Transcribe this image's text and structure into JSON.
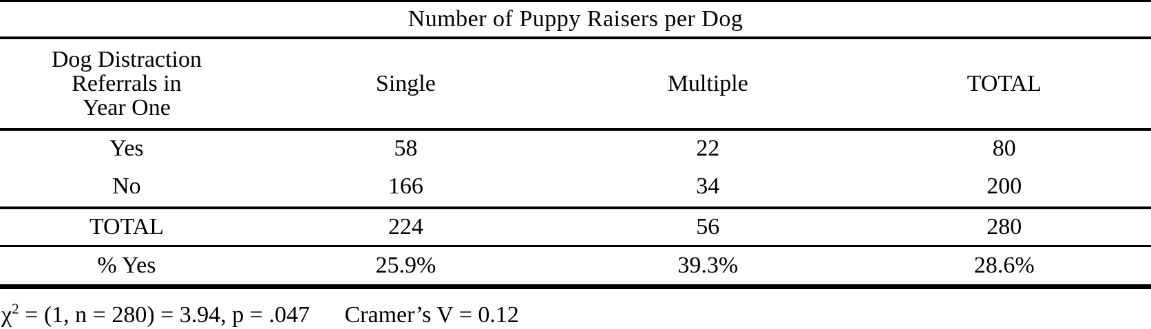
{
  "table": {
    "title": "Number of Puppy Raisers per Dog",
    "row_header_lines": [
      "Dog Distraction",
      "Referrals in",
      "Year One"
    ],
    "columns": [
      "Single",
      "Multiple",
      "TOTAL"
    ],
    "rows": [
      {
        "label": "Yes",
        "cells": [
          "58",
          "22",
          "80"
        ]
      },
      {
        "label": "No",
        "cells": [
          "166",
          "34",
          "200"
        ]
      },
      {
        "label": "TOTAL",
        "cells": [
          "224",
          "56",
          "280"
        ]
      },
      {
        "label": "% Yes",
        "cells": [
          "25.9%",
          "39.3%",
          "28.6%"
        ]
      }
    ]
  },
  "stats": {
    "chi_symbol": "χ",
    "chi_sup": "2",
    "chi_rest": " = (1, n = 280) = 3.94, p = .047",
    "cramers_v": "Cramer’s V = 0.12"
  },
  "colors": {
    "text": "#000000",
    "background": "#ffffff",
    "rule": "#000000"
  },
  "chart_data": {
    "type": "table",
    "title": "Number of Puppy Raisers per Dog",
    "row_label_header": "Dog Distraction Referrals in Year One",
    "columns": [
      "Single",
      "Multiple",
      "TOTAL"
    ],
    "rows": [
      {
        "label": "Yes",
        "values": [
          58,
          22,
          80
        ]
      },
      {
        "label": "No",
        "values": [
          166,
          34,
          200
        ]
      },
      {
        "label": "TOTAL",
        "values": [
          224,
          56,
          280
        ]
      },
      {
        "label": "% Yes",
        "values": [
          "25.9%",
          "39.3%",
          "28.6%"
        ]
      }
    ],
    "notes": "χ2 = (1, n = 280) = 3.94, p = .047; Cramer’s V = 0.12"
  }
}
